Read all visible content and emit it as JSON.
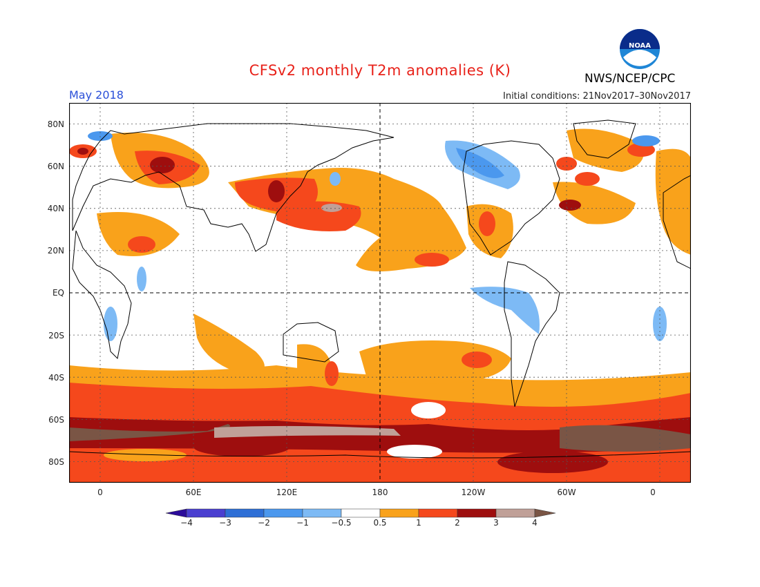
{
  "header": {
    "title": "CFSv2 monthly T2m anomalies (K)",
    "month": "May 2018",
    "initial_conditions": "Initial conditions: 21Nov2017–30Nov2017",
    "agency": "NWS/NCEP/CPC",
    "logo_text": "NOAA"
  },
  "map": {
    "projection": "equirectangular",
    "lon_range": [
      -20,
      380
    ],
    "lat_range": [
      -90,
      90
    ],
    "lat_labels": [
      "80N",
      "60N",
      "40N",
      "20N",
      "EQ",
      "20S",
      "40S",
      "60S",
      "80S"
    ],
    "lon_labels": [
      "0",
      "60E",
      "120E",
      "180",
      "120W",
      "60W",
      "0"
    ]
  },
  "colorbar": {
    "labels": [
      "−4",
      "−3",
      "−2",
      "−1",
      "−0.5",
      "0.5",
      "1",
      "2",
      "3",
      "4"
    ],
    "colors": [
      "#2b0b9a",
      "#4a3fd0",
      "#2e6fd6",
      "#4b98ee",
      "#7dbaf5",
      "#ffffff",
      "#f9a21b",
      "#f5481c",
      "#9e0e0e",
      "#c0a098",
      "#7a5545"
    ]
  }
}
